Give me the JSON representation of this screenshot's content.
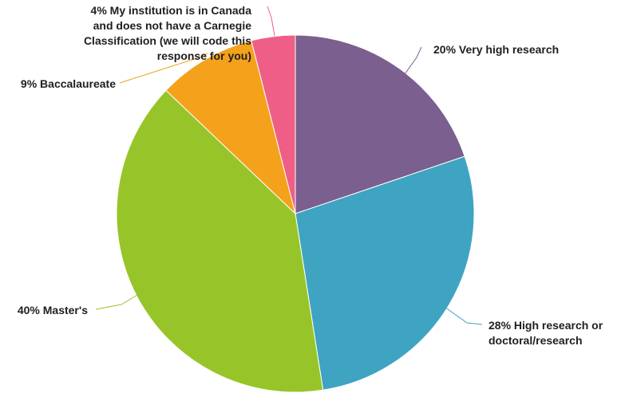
{
  "chart_data": {
    "type": "pie",
    "start_angle_deg": 0,
    "direction": "clockwise",
    "slices": [
      {
        "name": "Very high research",
        "value": 20,
        "color": "#7a5f8f",
        "label_lines": [
          "20% Very high research"
        ]
      },
      {
        "name": "High research or doctoral/research",
        "value": 28,
        "color": "#3fa3c2",
        "label_lines": [
          "28% High research or",
          "doctoral/research"
        ]
      },
      {
        "name": "Master's",
        "value": 40,
        "color": "#97c529",
        "label_lines": [
          "40% Master's"
        ]
      },
      {
        "name": "Baccalaureate",
        "value": 9,
        "color": "#f4a11b",
        "label_lines": [
          "9% Baccalaureate"
        ]
      },
      {
        "name": "My institution is in Canada and does not have a Carnegie Classification (we will code this response for you)",
        "value": 4,
        "color": "#ef5e86",
        "label_lines": [
          "4% My institution is in Canada",
          "and does not have a Carnegie",
          "Classification (we will code this",
          "response for you)"
        ]
      }
    ]
  }
}
